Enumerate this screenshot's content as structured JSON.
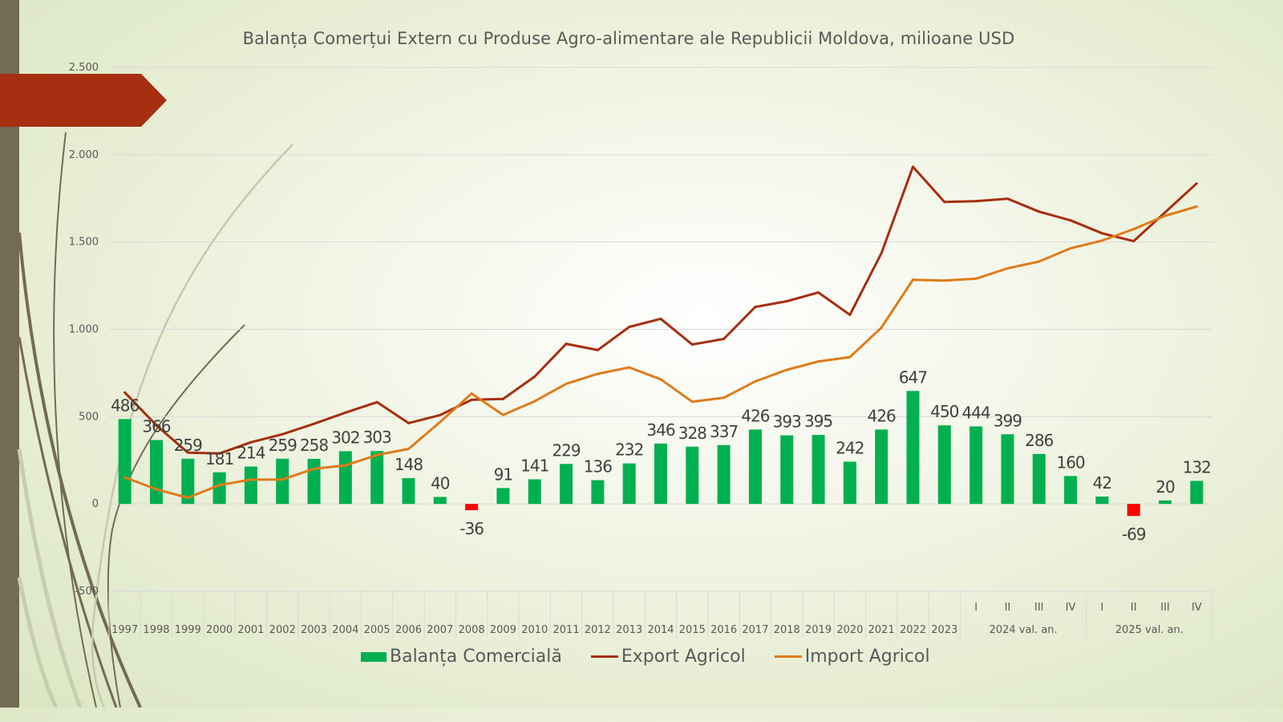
{
  "title": "Balanța Comerțui Extern cu Produse Agro-alimentare ale Republicii Moldova, milioane USD",
  "colors": {
    "balance_positive": "#00b050",
    "balance_negative": "#ff0000",
    "export": "#a62e0f",
    "import": "#e07b1a",
    "side_bar": "#736b55",
    "banner": "#a52f10"
  },
  "legend": [
    {
      "label": "Balanța Comercială",
      "type": "bar"
    },
    {
      "label": "Export Agricol",
      "type": "line"
    },
    {
      "label": "Import Agricol",
      "type": "line"
    }
  ],
  "chart_data": {
    "type": "bar",
    "title": "Balanța Comerțui Extern cu Produse Agro-alimentare ale Republicii Moldova, milioane USD",
    "xlabel": "",
    "ylabel": "",
    "ylim": [
      -500,
      2500
    ],
    "yticks": [
      -500,
      0,
      500,
      1000,
      1500,
      2000,
      2500
    ],
    "ytick_labels": [
      "-500",
      "0",
      "500",
      "1.000",
      "1.500",
      "2.000",
      "2.500"
    ],
    "grid": true,
    "legend_position": "bottom",
    "categories": [
      "1997",
      "1998",
      "1999",
      "2000",
      "2001",
      "2002",
      "2003",
      "2004",
      "2005",
      "2006",
      "2007",
      "2008",
      "2009",
      "2010",
      "2011",
      "2012",
      "2013",
      "2014",
      "2015",
      "2016",
      "2017",
      "2018",
      "2019",
      "2020",
      "2021",
      "2022",
      "2023",
      "I",
      "II",
      "III",
      "IV",
      "I",
      "II",
      "III",
      "IV"
    ],
    "category_groups": [
      {
        "label": "2024 val. an.",
        "start": 27,
        "end": 30
      },
      {
        "label": "2025 val. an.",
        "start": 31,
        "end": 34
      }
    ],
    "series": [
      {
        "name": "Balanța Comercială",
        "type": "bar",
        "values": [
          486,
          366,
          259,
          181,
          214,
          259,
          258,
          302,
          303,
          148,
          40,
          -36,
          91,
          141,
          229,
          136,
          232,
          346,
          328,
          337,
          426,
          393,
          395,
          242,
          426,
          647,
          450,
          444,
          399,
          286,
          160,
          42,
          -69,
          20,
          132
        ]
      },
      {
        "name": "Export Agricol",
        "type": "line",
        "values": [
          638,
          450,
          294,
          289,
          353,
          399,
          459,
          523,
          583,
          463,
          509,
          596,
          601,
          729,
          917,
          881,
          1014,
          1060,
          913,
          945,
          1128,
          1161,
          1211,
          1083,
          1436,
          1931,
          1729,
          1734,
          1748,
          1674,
          1624,
          1550,
          1505,
          1670,
          1835
        ]
      },
      {
        "name": "Import Agricol",
        "type": "line",
        "values": [
          152,
          84,
          35,
          108,
          139,
          140,
          201,
          221,
          280,
          315,
          469,
          632,
          510,
          588,
          688,
          745,
          782,
          714,
          585,
          608,
          702,
          768,
          816,
          841,
          1010,
          1284,
          1279,
          1290,
          1349,
          1388,
          1464,
          1508,
          1574,
          1650,
          1703
        ]
      }
    ]
  }
}
